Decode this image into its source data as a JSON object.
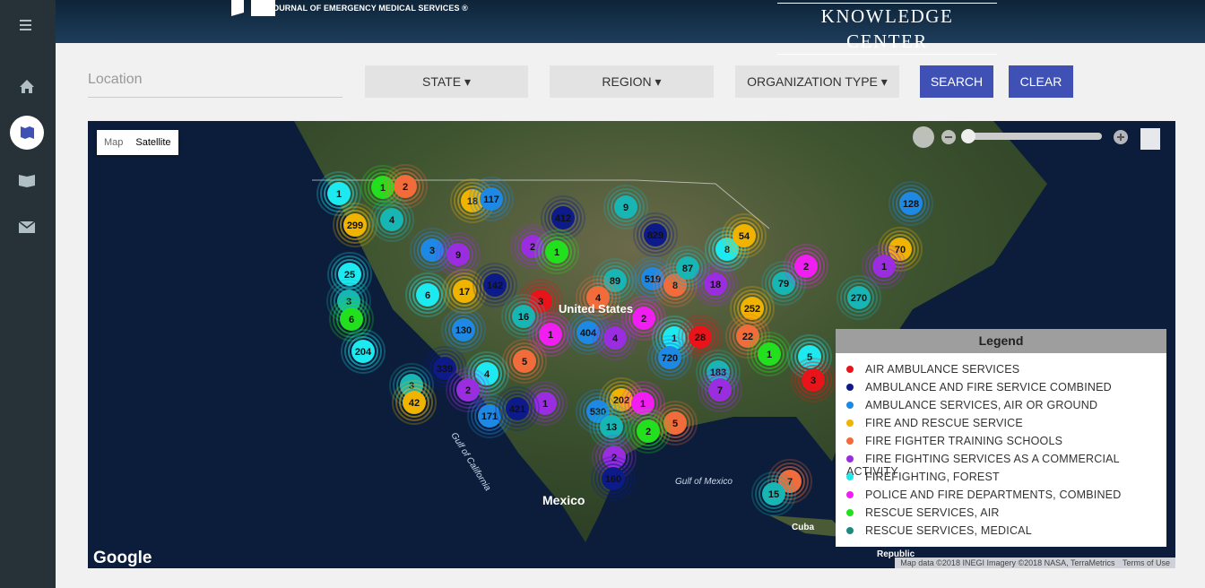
{
  "header": {
    "subtitle": "JOURNAL OF EMERGENCY MEDICAL SERVICES ®",
    "section": "KNOWLEDGE CENTER"
  },
  "search": {
    "location_placeholder": "Location",
    "state": "STATE",
    "region": "REGION",
    "organization_type": "ORGANIZATION TYPE",
    "search": "SEARCH",
    "clear": "CLEAR"
  },
  "map": {
    "map_button": "Map",
    "satellite_button": "Satellite",
    "labels": {
      "us": "United States",
      "mexico": "Mexico",
      "gulf_california": "Gulf of California",
      "gulf_mexico": "Gulf of Mexico",
      "cuba": "Cuba",
      "republic": "Republic"
    },
    "google": "Google",
    "attribution": "Map data ©2018 INEGI Imagery ©2018 NASA, TerraMetrics",
    "terms": "Terms of Use",
    "clusters": [
      {
        "label": 1,
        "color": "#1de9f0"
      },
      {
        "label": 1,
        "color": "#22e01e"
      },
      {
        "label": 2,
        "color": "#f26b3a"
      },
      {
        "label": 18,
        "color": "#f0b400"
      },
      {
        "label": 117,
        "color": "#1e88e5"
      },
      {
        "label": 9,
        "color": "#18b5b5"
      },
      {
        "label": 299,
        "color": "#f0b400"
      },
      {
        "label": 4,
        "color": "#18b5b5"
      },
      {
        "label": 412,
        "color": "#0d1a8a"
      },
      {
        "label": 829,
        "color": "#0d1a8a"
      },
      {
        "label": 128,
        "color": "#1e88e5"
      },
      {
        "label": 3,
        "color": "#1e88e5"
      },
      {
        "label": 9,
        "color": "#9b2de0"
      },
      {
        "label": 2,
        "color": "#9b2de0"
      },
      {
        "label": 1,
        "color": "#22e01e"
      },
      {
        "label": 8,
        "color": "#1de9f0"
      },
      {
        "label": 54,
        "color": "#f0b400"
      },
      {
        "label": 70,
        "color": "#f0b400"
      },
      {
        "label": 25,
        "color": "#1de9f0"
      },
      {
        "label": 6,
        "color": "#1de9f0"
      },
      {
        "label": 17,
        "color": "#f0b400"
      },
      {
        "label": 142,
        "color": "#0d1a8a"
      },
      {
        "label": 3,
        "color": "#e8141a"
      },
      {
        "label": 89,
        "color": "#18b5b5"
      },
      {
        "label": 519,
        "color": "#1e88e5"
      },
      {
        "label": 8,
        "color": "#f26b3a"
      },
      {
        "label": 87,
        "color": "#18b5b5"
      },
      {
        "label": 18,
        "color": "#9b2de0"
      },
      {
        "label": 79,
        "color": "#18b5b5"
      },
      {
        "label": 2,
        "color": "#f01ef0"
      },
      {
        "label": 1,
        "color": "#9b2de0"
      },
      {
        "label": 270,
        "color": "#18b5b5"
      },
      {
        "label": 3,
        "color": "#18b5b5"
      },
      {
        "label": 4,
        "color": "#f26b3a"
      },
      {
        "label": 252,
        "color": "#f0b400"
      },
      {
        "label": 6,
        "color": "#22e01e"
      },
      {
        "label": 16,
        "color": "#18b5b5"
      },
      {
        "label": 2,
        "color": "#f01ef0"
      },
      {
        "label": 1,
        "color": "#f01ef0"
      },
      {
        "label": 404,
        "color": "#1e88e5"
      },
      {
        "label": 4,
        "color": "#9b2de0"
      },
      {
        "label": 1,
        "color": "#1de9f0"
      },
      {
        "label": 28,
        "color": "#e8141a"
      },
      {
        "label": 22,
        "color": "#f26b3a"
      },
      {
        "label": 130,
        "color": "#1e88e5"
      },
      {
        "label": 204,
        "color": "#1de9f0"
      },
      {
        "label": 1,
        "color": "#22e01e"
      },
      {
        "label": 5,
        "color": "#1de9f0"
      },
      {
        "label": 5,
        "color": "#f26b3a"
      },
      {
        "label": 4,
        "color": "#1de9f0"
      },
      {
        "label": 339,
        "color": "#0d1a8a"
      },
      {
        "label": 720,
        "color": "#1e88e5"
      },
      {
        "label": 183,
        "color": "#18b5b5"
      },
      {
        "label": 3,
        "color": "#18b5b5"
      },
      {
        "label": 2,
        "color": "#9b2de0"
      },
      {
        "label": 42,
        "color": "#f0b400"
      },
      {
        "label": 1,
        "color": "#9b2de0"
      },
      {
        "label": 171,
        "color": "#1e88e5"
      },
      {
        "label": 421,
        "color": "#0d1a8a"
      },
      {
        "label": 202,
        "color": "#f0b400"
      },
      {
        "label": 1,
        "color": "#f01ef0"
      },
      {
        "label": 530,
        "color": "#1e88e5"
      },
      {
        "label": 13,
        "color": "#18b5b5"
      },
      {
        "label": 5,
        "color": "#f26b3a"
      },
      {
        "label": 2,
        "color": "#22e01e"
      },
      {
        "label": 7,
        "color": "#9b2de0"
      },
      {
        "label": 3,
        "color": "#e8141a"
      },
      {
        "label": 2,
        "color": "#9b2de0"
      },
      {
        "label": 7,
        "color": "#f26b3a"
      },
      {
        "label": 15,
        "color": "#18b5b5"
      },
      {
        "label": 160,
        "color": "#0d1a8a"
      }
    ]
  },
  "legend": {
    "title": "Legend",
    "items": [
      {
        "name": "AIR AMBULANCE SERVICES",
        "color": "#e8141a"
      },
      {
        "name": "AMBULANCE AND FIRE SERVICE COMBINED",
        "color": "#0d1a8a"
      },
      {
        "name": "AMBULANCE SERVICES, AIR OR GROUND",
        "color": "#1e88e5"
      },
      {
        "name": "FIRE AND RESCUE SERVICE",
        "color": "#f0b400"
      },
      {
        "name": "FIRE FIGHTER TRAINING SCHOOLS",
        "color": "#f26b3a"
      },
      {
        "name": "FIRE FIGHTING SERVICES AS A COMMERCIAL ACTIVITY",
        "color": "#9b2de0"
      },
      {
        "name": "FIREFIGHTING, FOREST",
        "color": "#1de9f0"
      },
      {
        "name": "POLICE AND FIRE DEPARTMENTS, COMBINED",
        "color": "#f01ef0"
      },
      {
        "name": "RESCUE SERVICES, AIR",
        "color": "#22e01e"
      },
      {
        "name": "RESCUE SERVICES, MEDICAL",
        "color": "#1d8a80"
      }
    ]
  }
}
